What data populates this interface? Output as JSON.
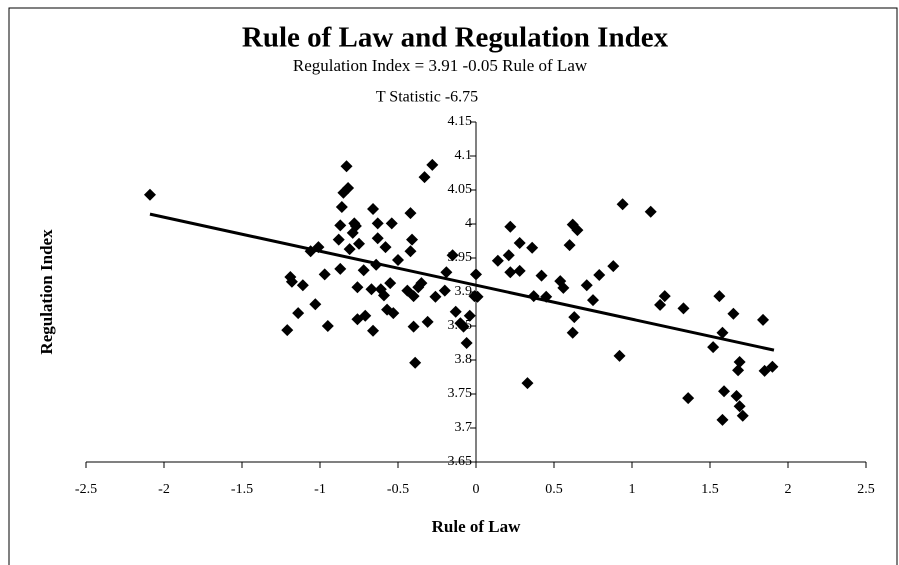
{
  "chart_data": {
    "type": "scatter",
    "title": "Rule of Law and Regulation Index",
    "annotations": [
      "Regulation Index = 3.91 -0.05 Rule of Law",
      "T Statistic -6.75"
    ],
    "xlabel": "Rule of Law",
    "ylabel": "Regulation Index",
    "color": "#000000",
    "x": [
      -2.09,
      -1.21,
      -1.19,
      -1.18,
      -1.14,
      -1.11,
      -1.06,
      -1.03,
      -1.01,
      -0.97,
      -0.95,
      -0.88,
      -0.87,
      -0.87,
      -0.86,
      -0.85,
      -0.83,
      -0.82,
      -0.81,
      -0.79,
      -0.78,
      -0.77,
      -0.76,
      -0.76,
      -0.75,
      -0.72,
      -0.71,
      -0.67,
      -0.66,
      -0.66,
      -0.64,
      -0.63,
      -0.63,
      -0.61,
      -0.59,
      -0.58,
      -0.57,
      -0.55,
      -0.54,
      -0.53,
      -0.5,
      -0.44,
      -0.42,
      -0.42,
      -0.41,
      -0.4,
      -0.4,
      -0.39,
      -0.37,
      -0.35,
      -0.33,
      -0.31,
      -0.28,
      -0.26,
      -0.2,
      -0.19,
      -0.15,
      -0.13,
      -0.1,
      -0.08,
      -0.06,
      -0.04,
      -0.01,
      0,
      0.01,
      0.14,
      0.21,
      0.22,
      0.22,
      0.28,
      0.28,
      0.33,
      0.36,
      0.37,
      0.42,
      0.45,
      0.54,
      0.56,
      0.6,
      0.62,
      0.62,
      0.63,
      0.65,
      0.71,
      0.75,
      0.79,
      0.88,
      0.92,
      0.94,
      1.12,
      1.18,
      1.21,
      1.33,
      1.36,
      1.52,
      1.56,
      1.58,
      1.58,
      1.59,
      1.65,
      1.67,
      1.69,
      1.68,
      1.69,
      1.71,
      1.84,
      1.85,
      1.9
    ],
    "values": [
      4.043,
      3.844,
      3.922,
      3.915,
      3.869,
      3.91,
      3.96,
      3.882,
      3.966,
      3.926,
      3.85,
      3.977,
      3.934,
      3.998,
      4.025,
      4.046,
      4.085,
      4.053,
      3.963,
      3.987,
      4.001,
      3.997,
      3.86,
      3.907,
      3.971,
      3.932,
      3.865,
      3.904,
      3.843,
      4.022,
      3.94,
      3.979,
      4.001,
      3.904,
      3.895,
      3.966,
      3.874,
      3.913,
      4.001,
      3.869,
      3.947,
      3.902,
      3.96,
      4.016,
      3.977,
      3.894,
      3.849,
      3.796,
      3.907,
      3.913,
      4.069,
      3.856,
      4.087,
      3.893,
      3.902,
      3.929,
      3.954,
      3.871,
      3.854,
      3.849,
      3.825,
      3.865,
      3.894,
      3.926,
      3.893,
      3.946,
      3.954,
      3.996,
      3.929,
      3.972,
      3.931,
      3.766,
      3.965,
      3.894,
      3.924,
      3.893,
      3.916,
      3.906,
      3.969,
      3.999,
      3.84,
      3.863,
      3.991,
      3.91,
      3.888,
      3.925,
      3.938,
      3.806,
      4.029,
      4.018,
      3.881,
      3.894,
      3.876,
      3.744,
      3.819,
      3.894,
      3.712,
      3.84,
      3.754,
      3.868,
      3.747,
      3.797,
      3.785,
      3.732,
      3.718,
      3.859,
      3.784,
      3.79
    ],
    "trendline": {
      "x": [
        -2.09,
        1.91
      ],
      "values": [
        4.0145,
        3.8145
      ]
    },
    "xlim": [
      -2.5,
      2.5
    ],
    "xticks": [
      -2.5,
      -2,
      -1.5,
      -1,
      -0.5,
      0,
      0.5,
      1,
      1.5,
      2,
      2.5
    ],
    "ylim": [
      3.65,
      4.15
    ],
    "yticks": [
      3.65,
      3.7,
      3.75,
      3.8,
      3.85,
      3.9,
      3.95,
      4,
      4.05,
      4.1,
      4.15
    ]
  }
}
